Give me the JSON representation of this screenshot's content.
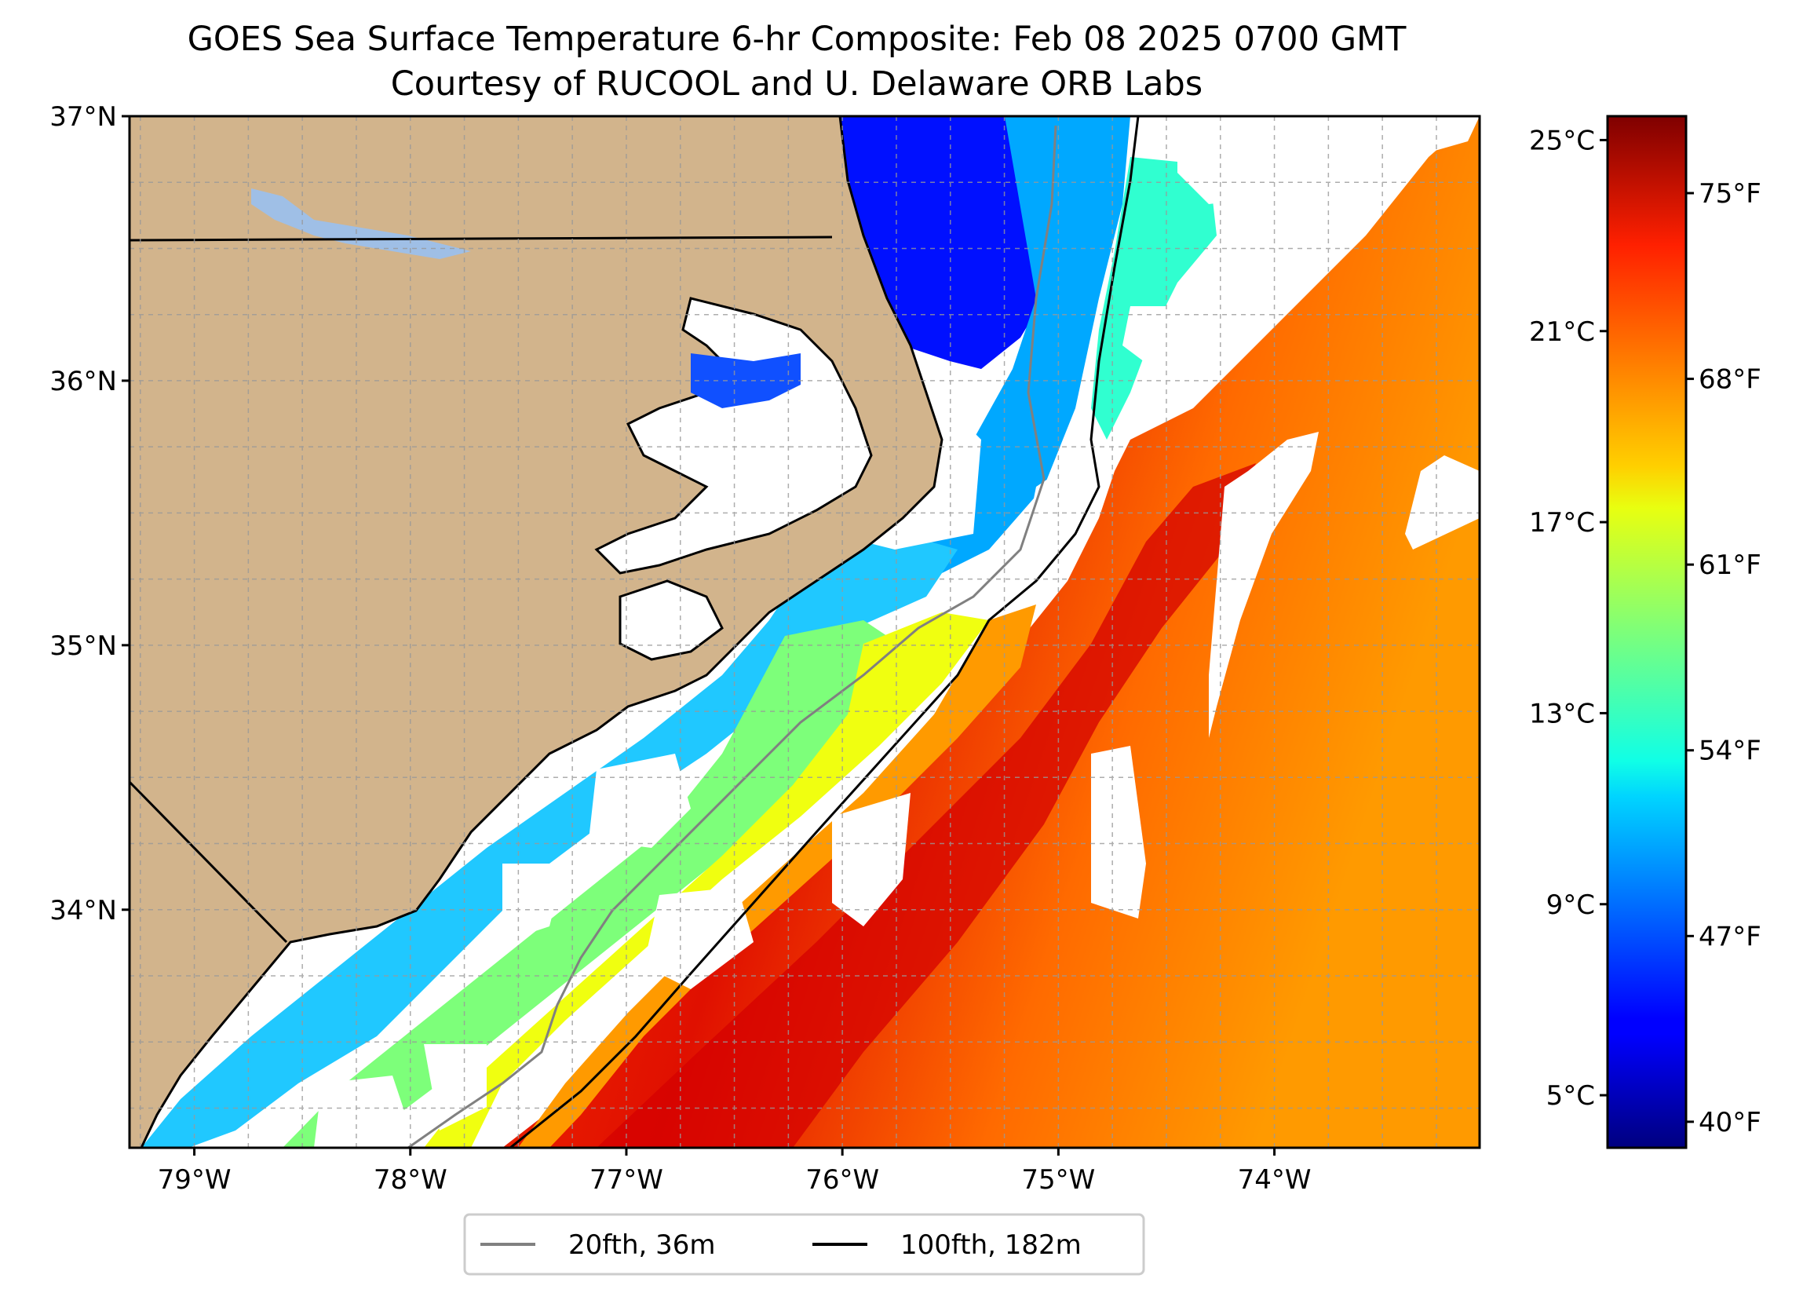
{
  "title": {
    "line1": "GOES Sea Surface Temperature 6-hr Composite: Feb 08 2025 0700 GMT",
    "line2": "Courtesy of RUCOOL and U. Delaware ORB Labs"
  },
  "map": {
    "lon_range": [
      -79.3,
      -73.05
    ],
    "lat_range": [
      33.1,
      37.0
    ],
    "grid": true,
    "lat_ticks": [
      {
        "value": 37,
        "label": "37°N"
      },
      {
        "value": 36,
        "label": "36°N"
      },
      {
        "value": 35,
        "label": "35°N"
      },
      {
        "value": 34,
        "label": "34°N"
      }
    ],
    "lon_ticks": [
      {
        "value": -79,
        "label": "79°W"
      },
      {
        "value": -78,
        "label": "78°W"
      },
      {
        "value": -77,
        "label": "77°W"
      },
      {
        "value": -76,
        "label": "76°W"
      },
      {
        "value": -75,
        "label": "75°W"
      },
      {
        "value": -74,
        "label": "74°W"
      }
    ],
    "colors": {
      "land": "#d2b48c",
      "cloud_mask": "#ffffff",
      "lakes": "#9fbfe6"
    }
  },
  "colorbar": {
    "colormap": "jet",
    "celsius_range": [
      3.9,
      25.5
    ],
    "celsius_ticks": [
      {
        "value": 25,
        "label": "25°C"
      },
      {
        "value": 21,
        "label": "21°C"
      },
      {
        "value": 17,
        "label": "17°C"
      },
      {
        "value": 13,
        "label": "13°C"
      },
      {
        "value": 9,
        "label": "9°C"
      },
      {
        "value": 5,
        "label": "5°C"
      }
    ],
    "fahrenheit_ticks": [
      {
        "value": 75,
        "label": "75°F"
      },
      {
        "value": 68,
        "label": "68°F"
      },
      {
        "value": 61,
        "label": "61°F"
      },
      {
        "value": 54,
        "label": "54°F"
      },
      {
        "value": 47,
        "label": "47°F"
      },
      {
        "value": 40,
        "label": "40°F"
      }
    ]
  },
  "legend": {
    "position": "bottom-center",
    "items": [
      {
        "label": "20fth, 36m",
        "color": "#808080"
      },
      {
        "label": "100fth, 182m",
        "color": "#000000"
      }
    ]
  }
}
